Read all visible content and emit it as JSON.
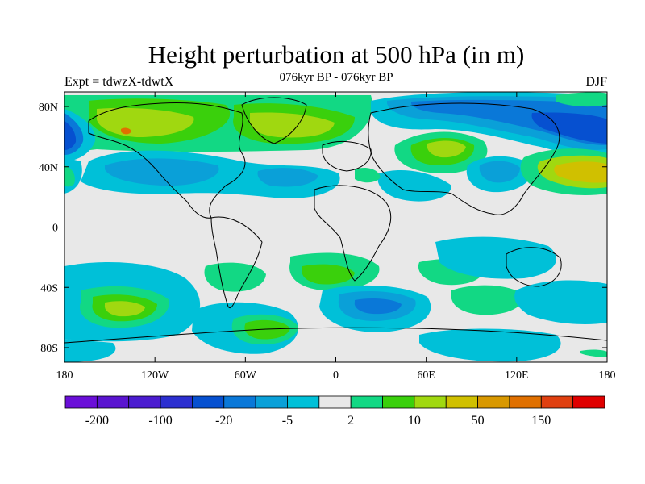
{
  "header": {
    "title": "Height perturbation at 500 hPa (in m)",
    "left_label": "Expt = tdwzX-tdwtX",
    "center_label": "076kyr BP - 076kyr BP",
    "right_label": "DJF"
  },
  "map": {
    "projection": "cylindrical equidistant",
    "background": "#e8e8e8",
    "lat_ticks": [
      "80N",
      "40N",
      "0",
      "40S",
      "80S"
    ],
    "lon_ticks": [
      "180",
      "120W",
      "60W",
      "0",
      "60E",
      "120E",
      "180"
    ]
  },
  "colorbar": {
    "colors": [
      "#6a0fd8",
      "#5a14d0",
      "#4b1cd0",
      "#2c2fd0",
      "#0650d0",
      "#0a78d8",
      "#0aa0d8",
      "#00c0d8",
      "#e8e8e8",
      "#12d884",
      "#3ad00c",
      "#a0d810",
      "#d0c000",
      "#d89800",
      "#e07000",
      "#e04010",
      "#e00000"
    ],
    "labels": [
      "-200",
      "-100",
      "-20",
      "-5",
      "2",
      "10",
      "50",
      "150"
    ]
  }
}
